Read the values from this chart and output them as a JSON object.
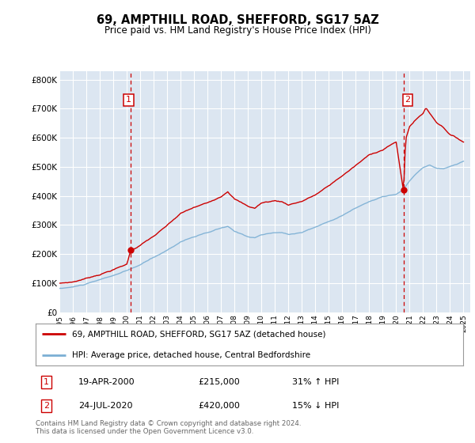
{
  "title": "69, AMPTHILL ROAD, SHEFFORD, SG17 5AZ",
  "subtitle": "Price paid vs. HM Land Registry's House Price Index (HPI)",
  "ylabel_ticks": [
    "£0",
    "£100K",
    "£200K",
    "£300K",
    "£400K",
    "£500K",
    "£600K",
    "£700K",
    "£800K"
  ],
  "ytick_values": [
    0,
    100000,
    200000,
    300000,
    400000,
    500000,
    600000,
    700000,
    800000
  ],
  "ylim": [
    0,
    830000
  ],
  "xlim_start": 1995.0,
  "xlim_end": 2025.5,
  "sale1": {
    "date_num": 2000.29,
    "price": 215000,
    "label": "1",
    "date_str": "19-APR-2000",
    "price_str": "£215,000",
    "hpi_str": "31% ↑ HPI"
  },
  "sale2": {
    "date_num": 2020.55,
    "price": 420000,
    "label": "2",
    "date_str": "24-JUL-2020",
    "price_str": "£420,000",
    "hpi_str": "15% ↓ HPI"
  },
  "legend1": "69, AMPTHILL ROAD, SHEFFORD, SG17 5AZ (detached house)",
  "legend2": "HPI: Average price, detached house, Central Bedfordshire",
  "footer": "Contains HM Land Registry data © Crown copyright and database right 2024.\nThis data is licensed under the Open Government Licence v3.0.",
  "bg_color": "#dce6f1",
  "red_color": "#cc0000",
  "blue_color": "#7bafd4",
  "grid_color": "#ffffff",
  "x_tick_years": [
    1995,
    1996,
    1997,
    1998,
    1999,
    2000,
    2001,
    2002,
    2003,
    2004,
    2005,
    2006,
    2007,
    2008,
    2009,
    2010,
    2011,
    2012,
    2013,
    2014,
    2015,
    2016,
    2017,
    2018,
    2019,
    2020,
    2021,
    2022,
    2023,
    2024,
    2025
  ]
}
